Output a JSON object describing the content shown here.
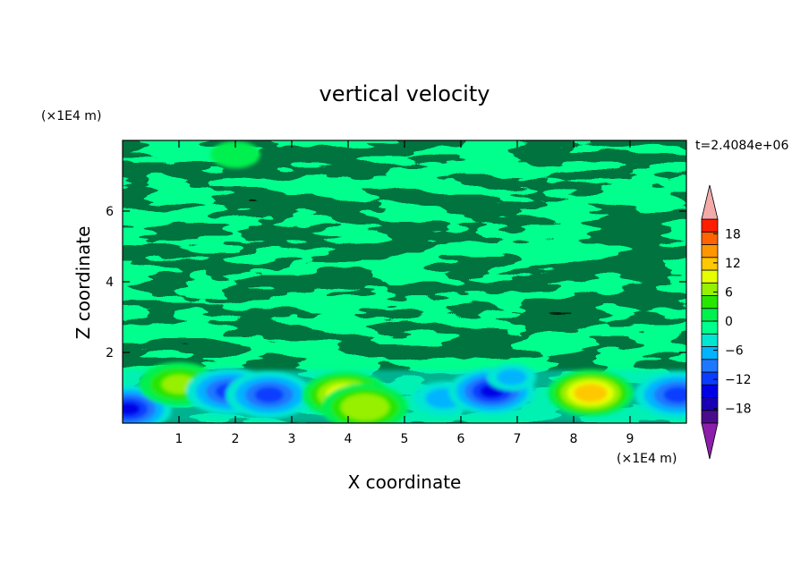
{
  "chart_data": {
    "type": "heatmap",
    "title": "vertical velocity",
    "xlabel": "X coordinate",
    "ylabel": "Z coordinate",
    "x_unit": "(×1E4 m)",
    "y_unit": "(×1E4 m)",
    "time_label": "t=2.4084e+06",
    "xlim": [
      0,
      10
    ],
    "ylim": [
      0,
      8
    ],
    "x_ticks": [
      1,
      2,
      3,
      4,
      5,
      6,
      7,
      8,
      9
    ],
    "y_ticks": [
      2,
      4,
      6
    ],
    "colorbar": {
      "min": -21,
      "max": 21,
      "step": 3,
      "tick_values": [
        -18,
        -12,
        -6,
        0,
        6,
        12,
        18
      ],
      "tick_labels": [
        "18",
        "12",
        "6",
        "0",
        "−6",
        "−12",
        "−18"
      ],
      "colors": [
        "#4b0c8c",
        "#1a00b4",
        "#0000e6",
        "#0a3cff",
        "#1e78ff",
        "#00b4ff",
        "#00e6d2",
        "#00ff8c",
        "#00f050",
        "#28e600",
        "#96f000",
        "#e6ff00",
        "#ffc800",
        "#ff9600",
        "#ff6400",
        "#ff1e00"
      ],
      "over_color": "#f5aaaa",
      "under_color": "#8c1eaa"
    },
    "features": [
      {
        "x": 0.1,
        "z": 0.4,
        "value": -15
      },
      {
        "x": 1.0,
        "z": 1.1,
        "value": 9
      },
      {
        "x": 1.9,
        "z": 0.9,
        "value": -12
      },
      {
        "x": 2.6,
        "z": 0.8,
        "value": -11
      },
      {
        "x": 3.95,
        "z": 0.8,
        "value": 14
      },
      {
        "x": 4.3,
        "z": 0.45,
        "value": 10
      },
      {
        "x": 5.7,
        "z": 0.7,
        "value": -6
      },
      {
        "x": 6.55,
        "z": 0.9,
        "value": -13
      },
      {
        "x": 8.3,
        "z": 0.85,
        "value": 16
      },
      {
        "x": 9.85,
        "z": 0.8,
        "value": -10
      },
      {
        "x": 6.9,
        "z": 1.3,
        "value": -4
      },
      {
        "x": 2.0,
        "z": 7.6,
        "value": 4
      }
    ]
  }
}
